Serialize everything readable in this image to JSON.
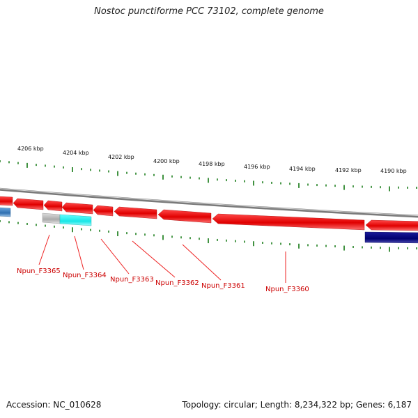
{
  "title": "Nostoc punctiforme PCC 73102, complete genome",
  "footer": {
    "accession": "Accession: NC_010628",
    "summary": "Topology: circular; Length: 8,234,322 bp; Genes: 6,187"
  },
  "scale_labels": [
    "4206 kbp",
    "4204 kbp",
    "4202 kbp",
    "4200 kbp",
    "4198 kbp",
    "4196 kbp",
    "4194 kbp",
    "4192 kbp",
    "4190 kbp"
  ],
  "gene_labels": [
    "Npun_F3365",
    "Npun_F3364",
    "Npun_F3363",
    "Npun_F3362",
    "Npun_F3361",
    "Npun_F3360"
  ],
  "colors": {
    "gene_red": "#ee1111",
    "gene_cyan": "#22eeee",
    "gene_grey": "#bbbbbb",
    "gene_navy": "#000080",
    "gene_blue": "#3377bb",
    "tick_green": "#117711",
    "label_red": "#cc0000",
    "backbone": "#888888"
  }
}
